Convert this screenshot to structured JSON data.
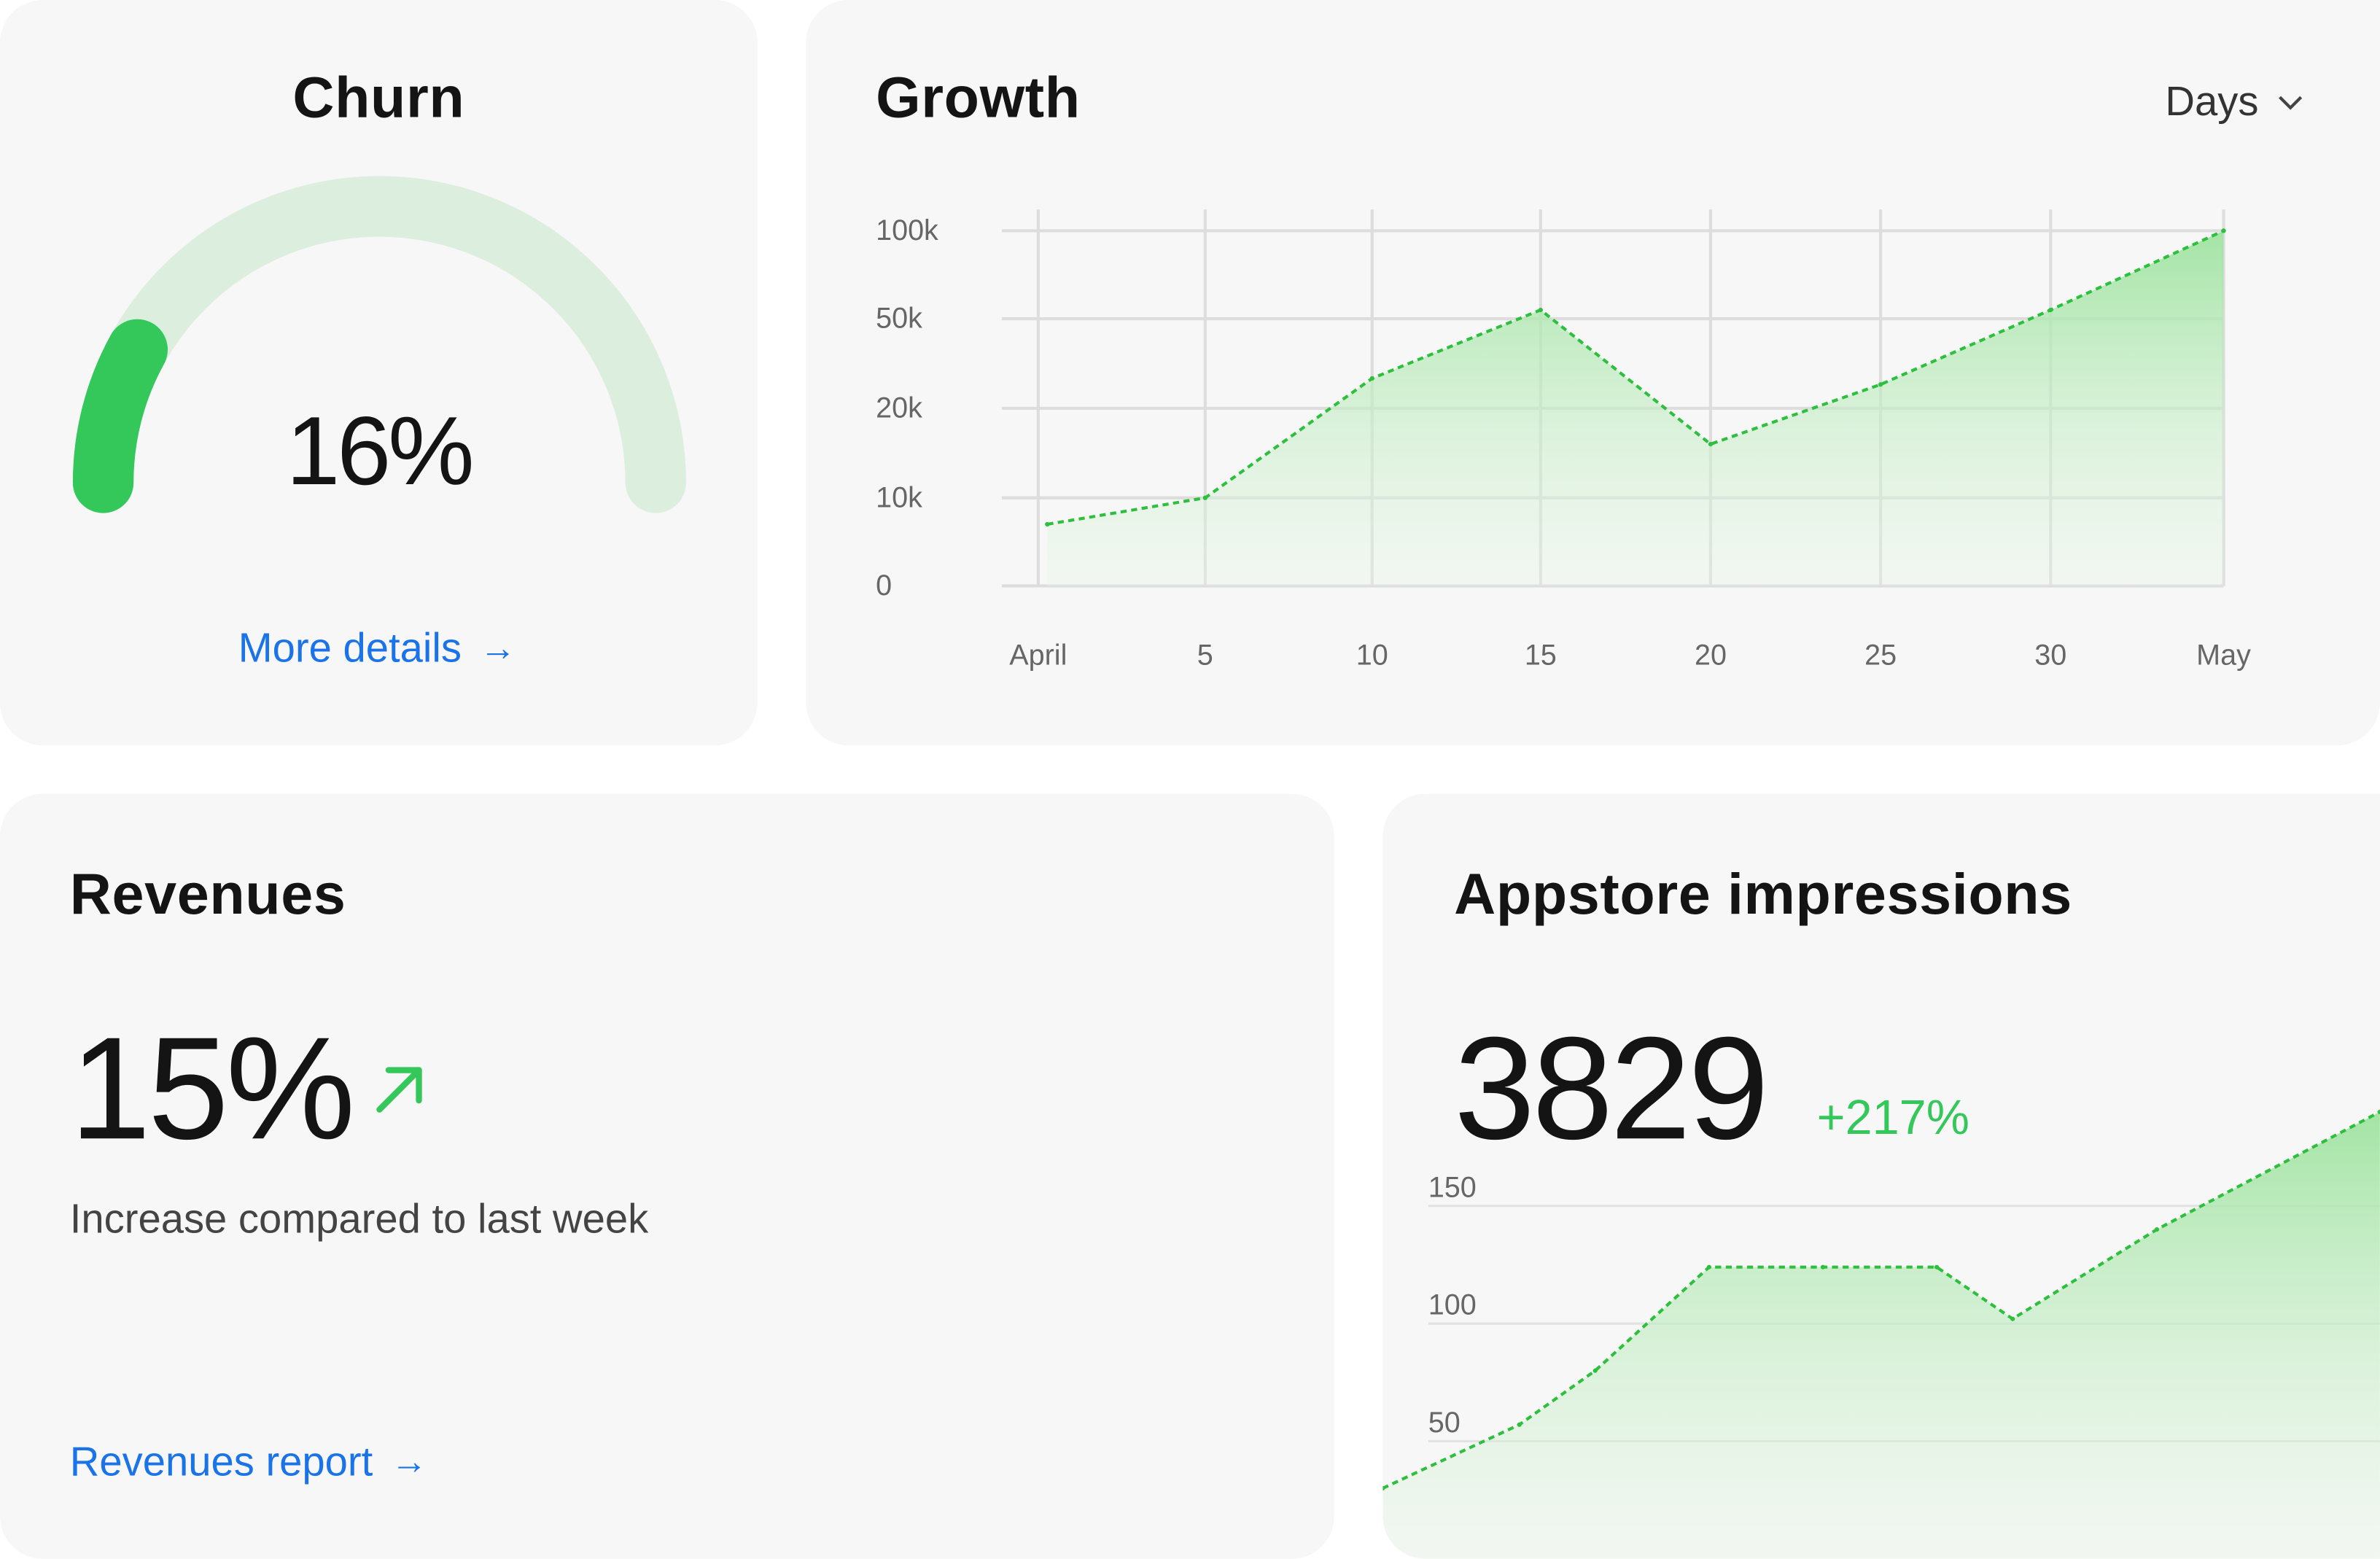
{
  "churn": {
    "title": "Churn",
    "value": "16%",
    "percent": 16,
    "link_label": "More details",
    "arrow": "→"
  },
  "growth": {
    "title": "Growth",
    "period_select": "Days",
    "chevron_icon": "chevron-down-icon"
  },
  "revenues": {
    "title": "Revenues",
    "value": "15%",
    "trend_icon": "arrow-up-right-icon",
    "caption": "Increase compared to last week",
    "link_label": "Revenues report",
    "arrow": "→"
  },
  "appstore": {
    "title": "Appstore impressions",
    "value": "3829",
    "change": "+217%"
  },
  "colors": {
    "accent_green": "#34c759",
    "track_green": "#dcefdf",
    "link_blue": "#1a73e8"
  },
  "chart_data": [
    {
      "type": "area",
      "xlabels": [
        "April",
        "5",
        "10",
        "15",
        "20",
        "25",
        "30",
        "May"
      ],
      "ytick_labels": [
        "100k",
        "50k",
        "20k",
        "10k",
        "0"
      ],
      "yscale": "nonlinear",
      "series": [
        {
          "x": [
            "April",
            "5",
            "10",
            "15",
            "20",
            "25",
            "30",
            "May"
          ],
          "y": [
            7000,
            10000,
            30000,
            55000,
            16000,
            28000,
            55000,
            100000
          ]
        }
      ],
      "grid": true
    },
    {
      "type": "area",
      "ytick_labels": [
        "150",
        "100",
        "50"
      ],
      "ylim": [
        0,
        200
      ],
      "series": [
        {
          "x": [
            0,
            1,
            2,
            3,
            4,
            5,
            6,
            7,
            8
          ],
          "y": [
            30,
            57,
            80,
            124,
            124,
            124,
            102,
            140,
            190
          ]
        }
      ],
      "grid": true
    }
  ]
}
